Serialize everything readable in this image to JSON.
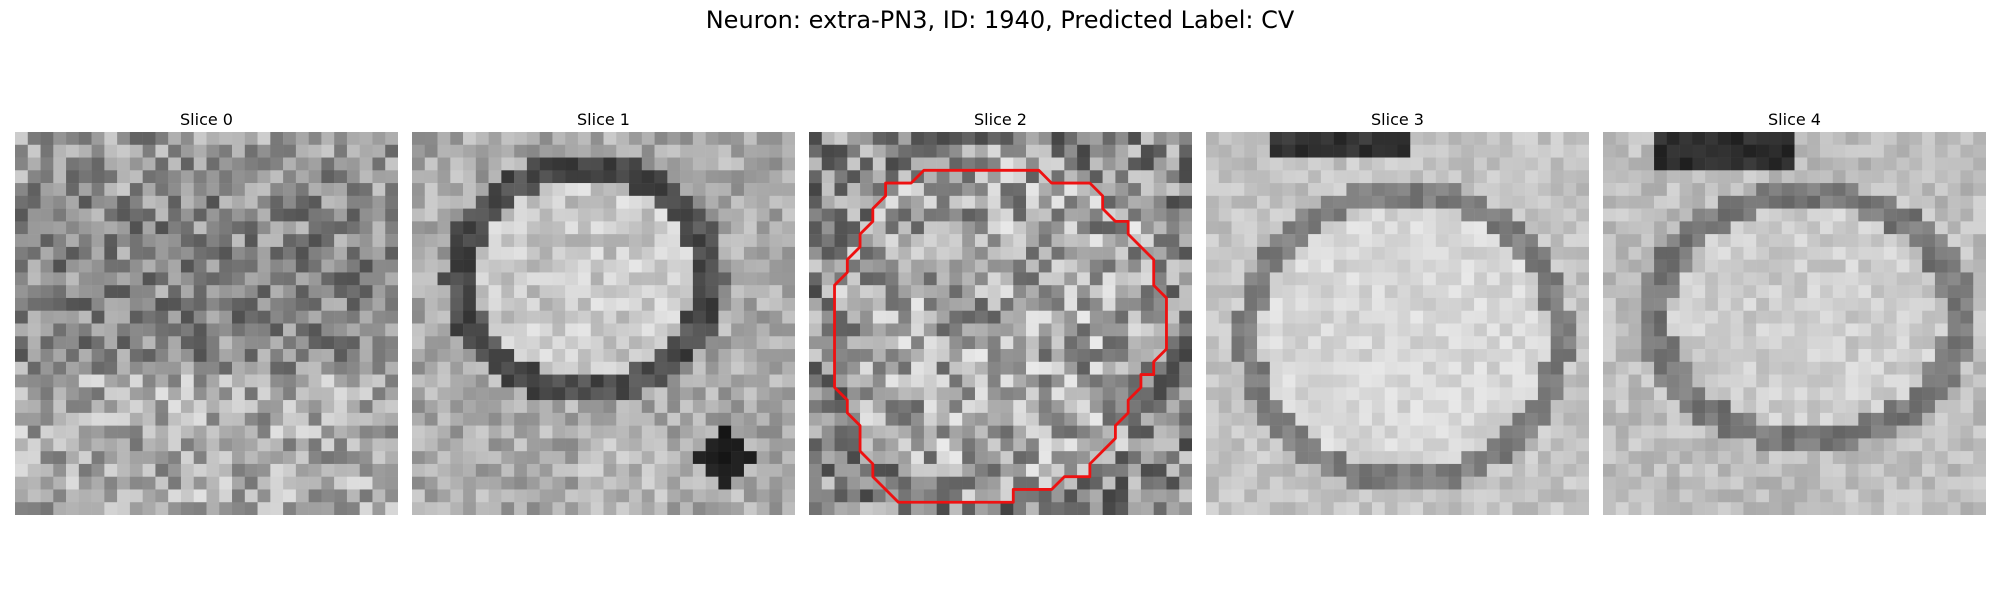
{
  "figure": {
    "title": "Neuron: extra-PN3, ID: 1940, Predicted Label: CV"
  },
  "panels": [
    {
      "title": "Slice 0",
      "pattern": "noise-textured",
      "outline": false
    },
    {
      "title": "Slice 1",
      "pattern": "bright-oval-dark-ring",
      "outline": false
    },
    {
      "title": "Slice 2",
      "pattern": "noisy-with-outline",
      "outline": true
    },
    {
      "title": "Slice 3",
      "pattern": "bright-large-oval",
      "outline": false
    },
    {
      "title": "Slice 4",
      "pattern": "bright-oval-dark-top",
      "outline": false
    }
  ],
  "colors": {
    "outline": "#ee1111",
    "background": "#ffffff"
  }
}
